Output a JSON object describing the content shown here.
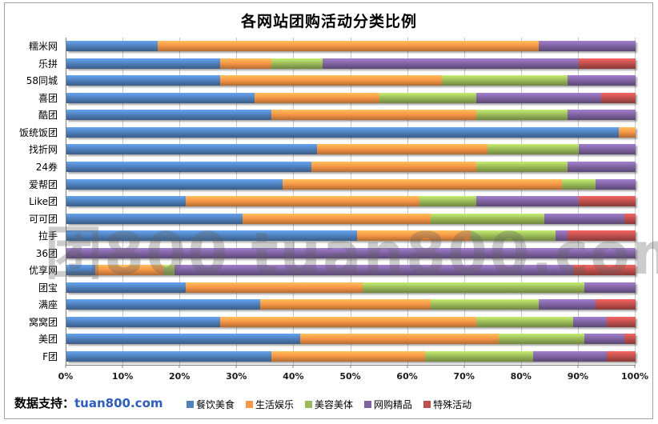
{
  "chart_data": {
    "type": "bar",
    "stacked": true,
    "orientation": "horizontal",
    "title": "各网站团购活动分类比例",
    "categories": [
      "糯米网",
      "乐拼",
      "58同城",
      "喜团",
      "酷团",
      "饭统饭团",
      "找折网",
      "24券",
      "爱帮团",
      "Like团",
      "可可团",
      "拉手",
      "36团",
      "优享网",
      "团宝",
      "满座",
      "窝窝团",
      "美团",
      "F团"
    ],
    "series": [
      {
        "name": "餐饮美食",
        "color": "#4F81BD",
        "values": [
          16,
          27,
          27,
          33,
          36,
          97,
          44,
          43,
          38,
          21,
          31,
          51,
          0,
          5,
          21,
          34,
          27,
          41,
          36
        ]
      },
      {
        "name": "生活娱乐",
        "color": "#F79646",
        "values": [
          67,
          9,
          39,
          22,
          36,
          3,
          30,
          29,
          49,
          41,
          33,
          20,
          0,
          12,
          31,
          30,
          45,
          35,
          27
        ]
      },
      {
        "name": "美容美体",
        "color": "#9BBB59",
        "values": [
          0,
          9,
          22,
          17,
          16,
          0,
          16,
          16,
          6,
          10,
          20,
          15,
          0,
          2,
          39,
          19,
          17,
          15,
          19
        ]
      },
      {
        "name": "网购精品",
        "color": "#8064A2",
        "values": [
          17,
          45,
          12,
          22,
          12,
          0,
          10,
          12,
          7,
          18,
          14,
          2,
          100,
          70,
          9,
          10,
          6,
          7,
          13
        ]
      },
      {
        "name": "特殊活动",
        "color": "#C0504D",
        "values": [
          0,
          10,
          0,
          6,
          0,
          0,
          0,
          0,
          0,
          10,
          2,
          12,
          0,
          11,
          0,
          7,
          5,
          2,
          5
        ]
      }
    ],
    "x_ticks": [
      "0%",
      "10%",
      "20%",
      "30%",
      "40%",
      "50%",
      "60%",
      "70%",
      "80%",
      "90%",
      "100%"
    ],
    "xlim": [
      0,
      100
    ],
    "grid": "vertical",
    "legend_position": "bottom"
  },
  "watermark": {
    "text": "团800 tuan800.com"
  },
  "footer": {
    "credit_label": "数据支持：",
    "credit_link": "tuan800.com",
    "link_color": "#2B5CC8"
  }
}
